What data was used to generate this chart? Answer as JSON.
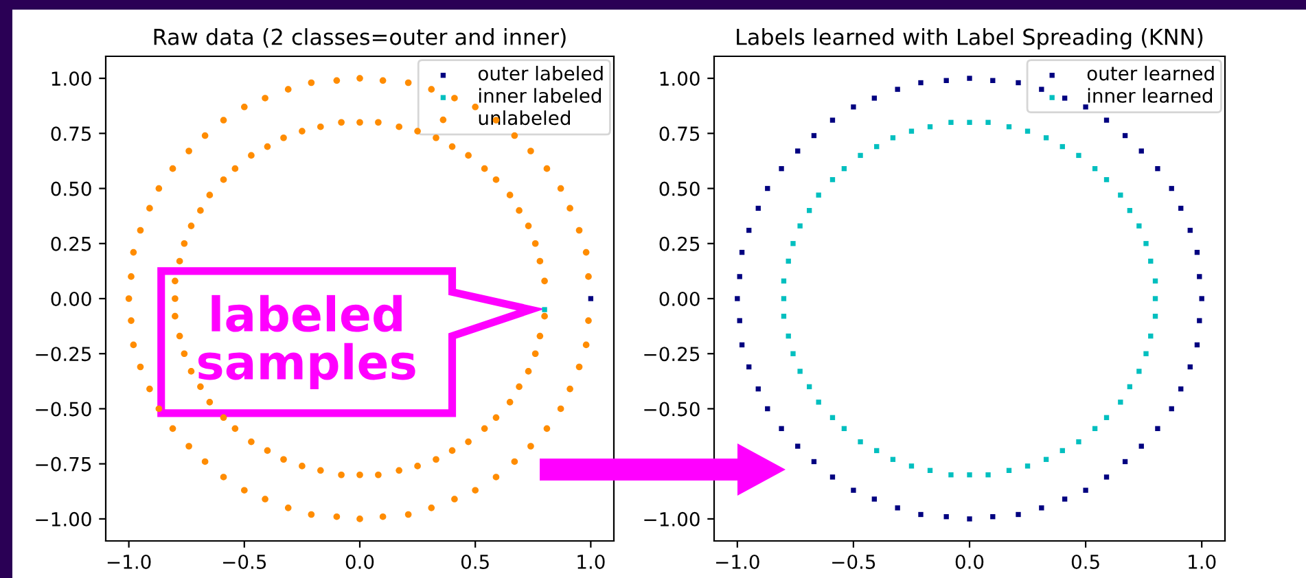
{
  "chart_data": [
    {
      "type": "scatter",
      "title": "Raw data (2 classes=outer and inner)",
      "legend": "top right",
      "grid": false,
      "xlim": [
        -1.1,
        1.1
      ],
      "ylim": [
        -1.1,
        1.1
      ],
      "xticks": [
        {
          "value": -1,
          "label": "−1.0"
        },
        {
          "value": -0.5,
          "label": "−0.5"
        },
        {
          "value": 0,
          "label": "0.0"
        },
        {
          "value": 0.5,
          "label": "0.5"
        },
        {
          "value": 1,
          "label": "1.0"
        }
      ],
      "yticks": [
        {
          "value": -1,
          "label": "−1.00"
        },
        {
          "value": -0.75,
          "label": "−0.75"
        },
        {
          "value": -0.5,
          "label": "−0.50"
        },
        {
          "value": -0.25,
          "label": "−0.25"
        },
        {
          "value": 0,
          "label": "0.00"
        },
        {
          "value": 0.25,
          "label": "0.25"
        },
        {
          "value": 0.5,
          "label": "0.50"
        },
        {
          "value": 0.75,
          "label": "0.75"
        },
        {
          "value": 1,
          "label": "1.00"
        }
      ],
      "annotations": [
        {
          "text": "labeled\nsamples",
          "x": 0.8,
          "y": -0.05
        }
      ],
      "series": [
        {
          "name": "outer labeled",
          "color": "#000080",
          "marker": "square",
          "x": [
            1
          ],
          "values": [
            0
          ]
        },
        {
          "name": "inner labeled",
          "color": "#00bfbf",
          "marker": "square",
          "x": [
            0.8
          ],
          "values": [
            -0.05
          ]
        },
        {
          "name": "unlabeled",
          "color": "#ff8c00",
          "marker": "circle",
          "x": [
            0.99,
            0.98,
            0.95,
            0.91,
            0.87,
            0.81,
            0.74,
            0.67,
            0.59,
            0.5,
            0.41,
            0.31,
            0.21,
            0.1,
            0,
            -0.1,
            -0.21,
            -0.31,
            -0.41,
            -0.5,
            -0.59,
            -0.67,
            -0.74,
            -0.81,
            -0.87,
            -0.91,
            -0.95,
            -0.98,
            -0.99,
            -1,
            -0.99,
            -0.98,
            -0.95,
            -0.91,
            -0.87,
            -0.81,
            -0.74,
            -0.67,
            -0.59,
            -0.5,
            -0.41,
            -0.31,
            -0.21,
            -0.1,
            0,
            0.1,
            0.21,
            0.31,
            0.41,
            0.5,
            0.59,
            0.67,
            0.74,
            0.81,
            0.87,
            0.91,
            0.95,
            0.98,
            0.99,
            0.8,
            0.78,
            0.76,
            0.73,
            0.69,
            0.65,
            0.59,
            0.54,
            0.47,
            0.4,
            0.33,
            0.25,
            0.17,
            0.08,
            0,
            -0.08,
            -0.17,
            -0.25,
            -0.33,
            -0.4,
            -0.47,
            -0.54,
            -0.59,
            -0.65,
            -0.69,
            -0.73,
            -0.76,
            -0.78,
            -0.8,
            -0.8,
            -0.8,
            -0.78,
            -0.76,
            -0.73,
            -0.69,
            -0.65,
            -0.59,
            -0.54,
            -0.47,
            -0.4,
            -0.33,
            -0.25,
            -0.17,
            -0.08,
            0,
            0.08,
            0.17,
            0.25,
            0.33,
            0.4,
            0.47,
            0.54,
            0.59,
            0.65,
            0.69,
            0.73,
            0.76,
            0.78,
            0.8
          ],
          "values": [
            0.1,
            0.21,
            0.31,
            0.41,
            0.5,
            0.59,
            0.67,
            0.74,
            0.81,
            0.87,
            0.91,
            0.95,
            0.98,
            0.99,
            1,
            0.99,
            0.98,
            0.95,
            0.91,
            0.87,
            0.81,
            0.74,
            0.67,
            0.59,
            0.5,
            0.41,
            0.31,
            0.21,
            0.1,
            0,
            -0.1,
            -0.21,
            -0.31,
            -0.41,
            -0.5,
            -0.59,
            -0.67,
            -0.74,
            -0.81,
            -0.87,
            -0.91,
            -0.95,
            -0.98,
            -0.99,
            -1,
            -0.99,
            -0.98,
            -0.95,
            -0.91,
            -0.87,
            -0.81,
            -0.74,
            -0.67,
            -0.59,
            -0.5,
            -0.41,
            -0.31,
            -0.21,
            -0.1,
            0.08,
            0.17,
            0.25,
            0.33,
            0.4,
            0.47,
            0.54,
            0.59,
            0.65,
            0.69,
            0.73,
            0.76,
            0.78,
            0.8,
            0.8,
            0.8,
            0.78,
            0.76,
            0.73,
            0.69,
            0.65,
            0.59,
            0.54,
            0.47,
            0.4,
            0.33,
            0.25,
            0.17,
            0.08,
            0,
            -0.08,
            -0.17,
            -0.25,
            -0.33,
            -0.4,
            -0.47,
            -0.54,
            -0.59,
            -0.65,
            -0.69,
            -0.73,
            -0.76,
            -0.78,
            -0.8,
            -0.8,
            -0.8,
            -0.78,
            -0.76,
            -0.73,
            -0.69,
            -0.65,
            -0.59,
            -0.54,
            -0.47,
            -0.4,
            -0.33,
            -0.25,
            -0.17,
            -0.08
          ]
        }
      ]
    },
    {
      "type": "scatter",
      "title": "Labels learned with Label Spreading (KNN)",
      "legend": "top right",
      "grid": false,
      "xlim": [
        -1.1,
        1.1
      ],
      "ylim": [
        -1.1,
        1.1
      ],
      "xticks": [
        {
          "value": -1,
          "label": "−1.0"
        },
        {
          "value": -0.5,
          "label": "−0.5"
        },
        {
          "value": 0,
          "label": "0.0"
        },
        {
          "value": 0.5,
          "label": "0.5"
        },
        {
          "value": 1,
          "label": "1.0"
        }
      ],
      "yticks": [
        {
          "value": -1,
          "label": "−1.00"
        },
        {
          "value": -0.75,
          "label": null
        },
        {
          "value": -0.5,
          "label": "−0.50"
        },
        {
          "value": -0.25,
          "label": "−0.25"
        },
        {
          "value": 0,
          "label": "0.00"
        },
        {
          "value": 0.25,
          "label": "0.25"
        },
        {
          "value": 0.5,
          "label": "0.50"
        },
        {
          "value": 0.75,
          "label": "0.75"
        },
        {
          "value": 1,
          "label": "1.00"
        }
      ],
      "series": [
        {
          "name": "outer learned",
          "color": "#000080",
          "marker": "square",
          "x": [
            1,
            0.99,
            0.98,
            0.95,
            0.91,
            0.87,
            0.81,
            0.74,
            0.67,
            0.59,
            0.5,
            0.41,
            0.31,
            0.21,
            0.1,
            0,
            -0.1,
            -0.21,
            -0.31,
            -0.41,
            -0.5,
            -0.59,
            -0.67,
            -0.74,
            -0.81,
            -0.87,
            -0.91,
            -0.95,
            -0.98,
            -0.99,
            -1,
            -0.99,
            -0.98,
            -0.95,
            -0.91,
            -0.87,
            -0.81,
            -0.74,
            -0.67,
            -0.59,
            -0.5,
            -0.41,
            -0.31,
            -0.21,
            -0.1,
            0,
            0.1,
            0.21,
            0.31,
            0.41,
            0.5,
            0.59,
            0.67,
            0.74,
            0.81,
            0.87,
            0.91,
            0.95,
            0.98,
            0.99
          ],
          "values": [
            0,
            0.1,
            0.21,
            0.31,
            0.41,
            0.5,
            0.59,
            0.67,
            0.74,
            0.81,
            0.87,
            0.91,
            0.95,
            0.98,
            0.99,
            1,
            0.99,
            0.98,
            0.95,
            0.91,
            0.87,
            0.81,
            0.74,
            0.67,
            0.59,
            0.5,
            0.41,
            0.31,
            0.21,
            0.1,
            0,
            -0.1,
            -0.21,
            -0.31,
            -0.41,
            -0.5,
            -0.59,
            -0.67,
            -0.74,
            -0.81,
            -0.87,
            -0.91,
            -0.95,
            -0.98,
            -0.99,
            -1,
            -0.99,
            -0.98,
            -0.95,
            -0.91,
            -0.87,
            -0.81,
            -0.74,
            -0.67,
            -0.59,
            -0.5,
            -0.41,
            -0.31,
            -0.21,
            -0.1
          ]
        },
        {
          "name": "inner learned",
          "color": "#00bfbf",
          "marker": "square",
          "x": [
            0.8,
            0.8,
            0.78,
            0.76,
            0.73,
            0.69,
            0.65,
            0.59,
            0.54,
            0.47,
            0.4,
            0.33,
            0.25,
            0.17,
            0.08,
            0,
            -0.08,
            -0.17,
            -0.25,
            -0.33,
            -0.4,
            -0.47,
            -0.54,
            -0.59,
            -0.65,
            -0.69,
            -0.73,
            -0.76,
            -0.78,
            -0.8,
            -0.8,
            -0.8,
            -0.78,
            -0.76,
            -0.73,
            -0.69,
            -0.65,
            -0.59,
            -0.54,
            -0.47,
            -0.4,
            -0.33,
            -0.25,
            -0.17,
            -0.08,
            0,
            0.08,
            0.17,
            0.25,
            0.33,
            0.4,
            0.47,
            0.54,
            0.59,
            0.65,
            0.69,
            0.73,
            0.76,
            0.78,
            0.8
          ],
          "values": [
            0,
            0.08,
            0.17,
            0.25,
            0.33,
            0.4,
            0.47,
            0.54,
            0.59,
            0.65,
            0.69,
            0.73,
            0.76,
            0.78,
            0.8,
            0.8,
            0.8,
            0.78,
            0.76,
            0.73,
            0.69,
            0.65,
            0.59,
            0.54,
            0.47,
            0.4,
            0.33,
            0.25,
            0.17,
            0.08,
            0,
            -0.08,
            -0.17,
            -0.25,
            -0.33,
            -0.4,
            -0.47,
            -0.54,
            -0.59,
            -0.65,
            -0.69,
            -0.73,
            -0.76,
            -0.78,
            -0.8,
            -0.8,
            -0.8,
            -0.78,
            -0.76,
            -0.73,
            -0.69,
            -0.65,
            -0.59,
            -0.54,
            -0.47,
            -0.4,
            -0.33,
            -0.25,
            -0.17,
            -0.08
          ]
        }
      ]
    }
  ]
}
